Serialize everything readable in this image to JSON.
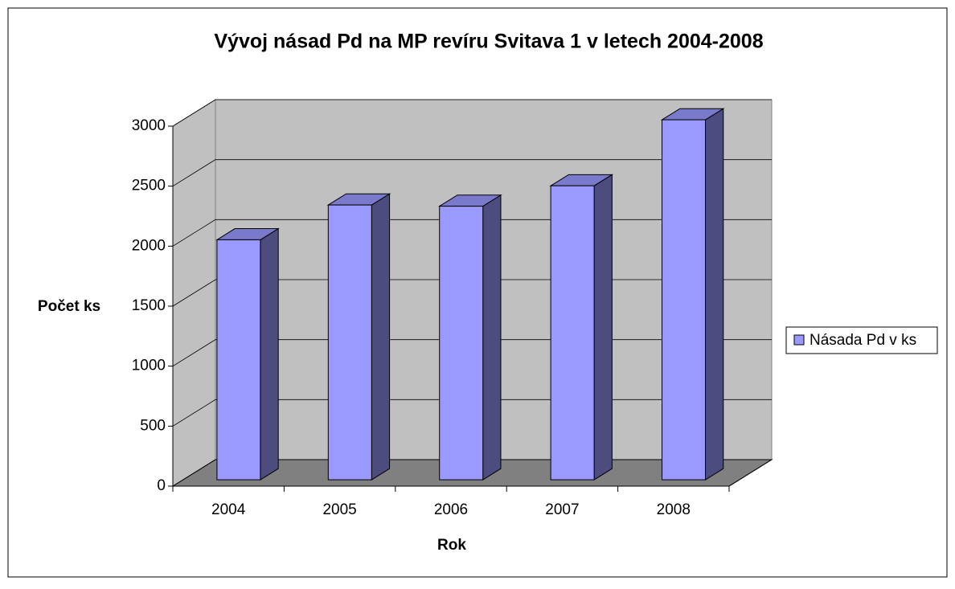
{
  "chart_data": {
    "type": "bar3d",
    "title": "Vývoj násad Pd na MP revíru Svitava 1 v letech 2004-2008",
    "x_label": "Rok",
    "y_label": "Počet ks",
    "categories": [
      "2004",
      "2005",
      "2006",
      "2007",
      "2008"
    ],
    "series": [
      {
        "name": "Násada Pd v ks",
        "color": "#9999ff",
        "values": [
          2000,
          2290,
          2280,
          2450,
          3000
        ]
      }
    ],
    "ylim": [
      0,
      3000
    ],
    "yticks": [
      0,
      500,
      1000,
      1500,
      2000,
      2500,
      3000
    ],
    "grid": true,
    "legend": "right"
  }
}
